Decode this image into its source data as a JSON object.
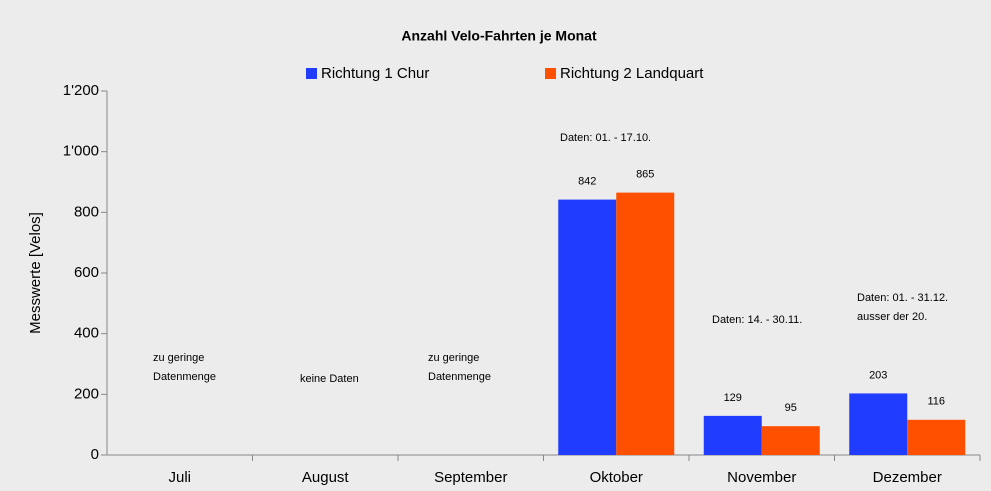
{
  "chart_data": {
    "type": "bar",
    "title": "Anzahl Velo-Fahrten je Monat",
    "y_label": "Messwerte [Velos]",
    "categories": [
      "Juli",
      "August",
      "September",
      "Oktober",
      "November",
      "Dezember"
    ],
    "series": [
      {
        "name": "Richtung 1 Chur",
        "color": "#1f3cff",
        "values": [
          null,
          null,
          null,
          842,
          129,
          203
        ]
      },
      {
        "name": "Richtung 2 Landquart",
        "color": "#ff5000",
        "values": [
          null,
          null,
          null,
          865,
          95,
          116
        ]
      }
    ],
    "ylim": [
      0,
      1200
    ],
    "yticks": [
      0,
      200,
      400,
      600,
      800,
      {
        "value": 1000,
        "label": "1'000"
      },
      {
        "value": 1200,
        "label": "1'200"
      }
    ],
    "grid": false,
    "legend": "top",
    "annotations": [
      {
        "lines": [
          "zu geringe",
          "Datenmenge"
        ]
      },
      {
        "lines": [
          "keine Daten"
        ]
      },
      {
        "lines": [
          "zu geringe",
          "Datenmenge"
        ]
      },
      {
        "lines": [
          "Daten: 01. - 17.10."
        ]
      },
      {
        "lines": [
          "Daten: 14. - 30.11."
        ]
      },
      {
        "lines": [
          "Daten: 01. - 31.12.",
          "ausser der 20."
        ]
      }
    ]
  }
}
